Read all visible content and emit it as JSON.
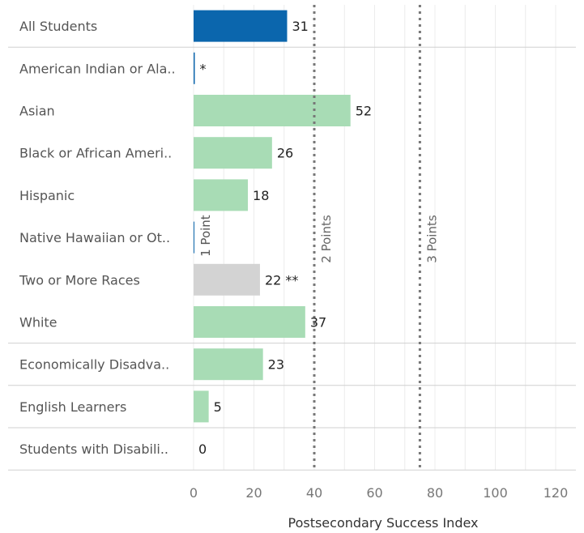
{
  "chart_data": {
    "type": "bar",
    "orientation": "horizontal",
    "categories": [
      "All Students",
      "American Indian or Ala..",
      "Asian",
      "Black or African Ameri..",
      "Hispanic",
      "Native Hawaiian or Ot..",
      "Two or More Races",
      "White",
      "Economically Disadva..",
      "English Learners",
      "Students with Disabili.."
    ],
    "values": [
      31,
      0.3,
      52,
      26,
      18,
      0.3,
      22,
      37,
      23,
      5,
      0
    ],
    "value_labels": [
      "31",
      "*",
      "52",
      "26",
      "18",
      "",
      "22 **",
      "37",
      "23",
      "5",
      "0"
    ],
    "bar_colors": [
      "#0b66ad",
      "#0b66ad",
      "#a8dcb5",
      "#a8dcb5",
      "#a8dcb5",
      "#0b66ad",
      "#d3d3d3",
      "#a8dcb5",
      "#a8dcb5",
      "#a8dcb5",
      "#a8dcb5"
    ],
    "xlabel": "Postsecondary Success Index",
    "xlim": [
      0,
      120
    ],
    "xticks": [
      0,
      20,
      40,
      60,
      80,
      100,
      120
    ],
    "grid": true,
    "reference_lines": [
      {
        "value": 40,
        "label": "2 Points"
      },
      {
        "value": 75,
        "label": "3 Points"
      }
    ],
    "overlap_text": {
      "label": "1 Point",
      "value": 7,
      "category": "Native Hawaiian or Ot.."
    }
  }
}
